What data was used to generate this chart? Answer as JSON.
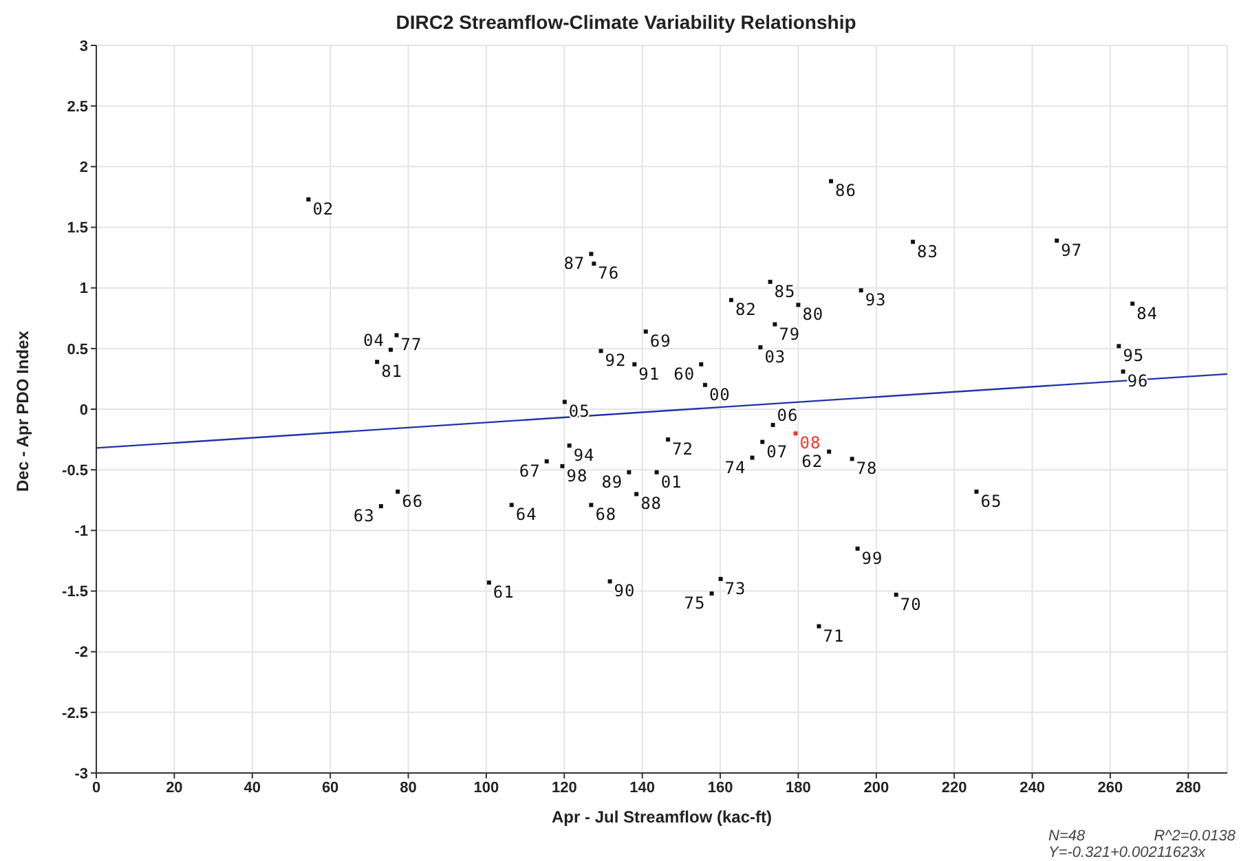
{
  "chart_data": {
    "type": "scatter",
    "title": "DIRC2 Streamflow-Climate Variability Relationship",
    "xlabel": "Apr - Jul Streamflow (kac-ft)",
    "ylabel": "Dec - Apr PDO Index",
    "xlim": [
      0,
      290
    ],
    "xticks": [
      0,
      20,
      40,
      60,
      80,
      100,
      120,
      140,
      160,
      180,
      200,
      220,
      240,
      260,
      280
    ],
    "ylim": [
      -3,
      3
    ],
    "yticks": [
      -3,
      -2.5,
      -2,
      -1.5,
      -1,
      -0.5,
      0,
      0.5,
      1,
      1.5,
      2,
      2.5,
      3
    ],
    "grid": true,
    "legend": false,
    "annotations": [
      {
        "text": "02",
        "x": 54.4,
        "y": 1.73
      },
      {
        "text": "77",
        "x": 77.0,
        "y": 0.61
      },
      {
        "text": "04",
        "x": 75.5,
        "y": 0.49
      },
      {
        "text": "81",
        "x": 72.0,
        "y": 0.39
      },
      {
        "text": "66",
        "x": 77.3,
        "y": -0.68
      },
      {
        "text": "63",
        "x": 73.0,
        "y": -0.8
      },
      {
        "text": "87",
        "x": 126.9,
        "y": 1.28
      },
      {
        "text": "76",
        "x": 127.6,
        "y": 1.2
      },
      {
        "text": "92",
        "x": 129.4,
        "y": 0.48
      },
      {
        "text": "05",
        "x": 120.1,
        "y": 0.06
      },
      {
        "text": "94",
        "x": 121.3,
        "y": -0.3
      },
      {
        "text": "67",
        "x": 115.5,
        "y": -0.43
      },
      {
        "text": "98",
        "x": 119.5,
        "y": -0.47
      },
      {
        "text": "64",
        "x": 106.5,
        "y": -0.79
      },
      {
        "text": "68",
        "x": 126.9,
        "y": -0.79
      },
      {
        "text": "61",
        "x": 100.7,
        "y": -1.43
      },
      {
        "text": "90",
        "x": 131.7,
        "y": -1.42
      },
      {
        "text": "89",
        "x": 136.6,
        "y": -0.52
      },
      {
        "text": "01",
        "x": 143.7,
        "y": -0.52
      },
      {
        "text": "88",
        "x": 138.5,
        "y": -0.7
      },
      {
        "text": "72",
        "x": 146.6,
        "y": -0.25
      },
      {
        "text": "86",
        "x": 188.4,
        "y": 1.88
      },
      {
        "text": "83",
        "x": 209.4,
        "y": 1.38
      },
      {
        "text": "85",
        "x": 172.8,
        "y": 1.05
      },
      {
        "text": "82",
        "x": 162.8,
        "y": 0.9
      },
      {
        "text": "80",
        "x": 180.0,
        "y": 0.86
      },
      {
        "text": "93",
        "x": 196.1,
        "y": 0.98
      },
      {
        "text": "69",
        "x": 140.9,
        "y": 0.64
      },
      {
        "text": "79",
        "x": 174.0,
        "y": 0.7
      },
      {
        "text": "03",
        "x": 170.3,
        "y": 0.51
      },
      {
        "text": "60",
        "x": 155.1,
        "y": 0.37
      },
      {
        "text": "91",
        "x": 138.0,
        "y": 0.37
      },
      {
        "text": "00",
        "x": 156.1,
        "y": 0.2
      },
      {
        "text": "06",
        "x": 173.5,
        "y": -0.13
      },
      {
        "text": "07",
        "x": 170.8,
        "y": -0.27
      },
      {
        "text": "74",
        "x": 168.2,
        "y": -0.4
      },
      {
        "text": "08",
        "x": 179.3,
        "y": -0.2
      },
      {
        "text": "62",
        "x": 187.9,
        "y": -0.35
      },
      {
        "text": "78",
        "x": 193.8,
        "y": -0.41
      },
      {
        "text": "65",
        "x": 225.7,
        "y": -0.68
      },
      {
        "text": "99",
        "x": 195.2,
        "y": -1.15
      },
      {
        "text": "73",
        "x": 160.1,
        "y": -1.4
      },
      {
        "text": "75",
        "x": 157.8,
        "y": -1.52
      },
      {
        "text": "70",
        "x": 205.1,
        "y": -1.53
      },
      {
        "text": "71",
        "x": 185.3,
        "y": -1.79
      },
      {
        "text": "97",
        "x": 246.3,
        "y": 1.39
      },
      {
        "text": "84",
        "x": 265.7,
        "y": 0.87
      },
      {
        "text": "95",
        "x": 262.2,
        "y": 0.52
      },
      {
        "text": "96",
        "x": 263.3,
        "y": 0.31
      },
      "N=48",
      "R^2=0.0138",
      "Y=-0.321+0.00211623x"
    ],
    "series": [
      {
        "color": "#111111",
        "marker": "square",
        "x": [
          54.4,
          77.0,
          75.5,
          72.0,
          77.3,
          73.0,
          126.9,
          127.6,
          129.4,
          120.1,
          121.3,
          115.5,
          119.5,
          106.5,
          126.9,
          100.7,
          131.7,
          136.6,
          143.7,
          138.5,
          146.6,
          188.4,
          209.4,
          172.8,
          162.8,
          180.0,
          196.1,
          140.9,
          174.0,
          170.3,
          155.1,
          138.0,
          156.1,
          173.5,
          170.8,
          168.2,
          179.3,
          187.9,
          193.8,
          225.7,
          195.2,
          160.1,
          157.8,
          205.1,
          185.3,
          246.3,
          265.7,
          262.2,
          263.3
        ],
        "values": [
          1.73,
          0.61,
          0.49,
          0.39,
          -0.68,
          -0.8,
          1.28,
          1.2,
          0.48,
          0.06,
          -0.3,
          -0.43,
          -0.47,
          -0.79,
          -0.79,
          -1.43,
          -1.42,
          -0.52,
          -0.52,
          -0.7,
          -0.25,
          1.88,
          1.38,
          1.05,
          0.9,
          0.86,
          0.98,
          0.64,
          0.7,
          0.51,
          0.37,
          0.37,
          0.2,
          -0.13,
          -0.27,
          -0.4,
          -0.2,
          -0.35,
          -0.41,
          -0.68,
          -1.15,
          -1.4,
          -1.52,
          -1.53,
          -1.79,
          1.39,
          0.87,
          0.52,
          0.31
        ],
        "colors": [
          "#111111",
          "#111111",
          "#111111",
          "#111111",
          "#111111",
          "#111111",
          "#111111",
          "#111111",
          "#111111",
          "#111111",
          "#111111",
          "#111111",
          "#111111",
          "#111111",
          "#111111",
          "#111111",
          "#111111",
          "#111111",
          "#111111",
          "#111111",
          "#111111",
          "#111111",
          "#111111",
          "#111111",
          "#111111",
          "#111111",
          "#111111",
          "#111111",
          "#111111",
          "#111111",
          "#111111",
          "#111111",
          "#111111",
          "#111111",
          "#111111",
          "#111111",
          "#ff3322",
          "#111111",
          "#111111",
          "#111111",
          "#111111",
          "#111111",
          "#111111",
          "#111111",
          "#111111",
          "#111111",
          "#111111",
          "#111111",
          "#111111"
        ]
      },
      {
        "type": "line",
        "color": "#2233aa",
        "x": [
          0,
          290
        ],
        "values": [
          -0.32,
          0.29
        ]
      }
    ]
  }
}
